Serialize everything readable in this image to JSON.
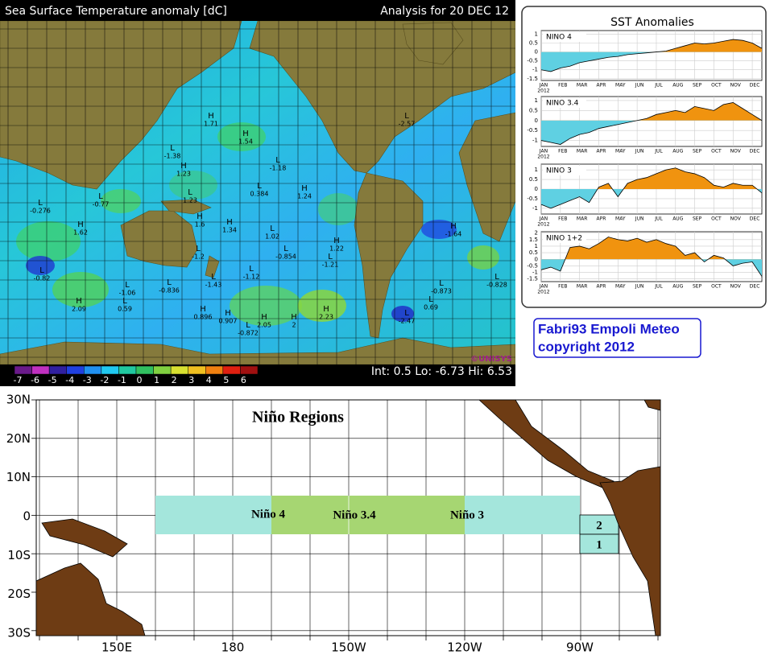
{
  "sst_map": {
    "title": "Sea Surface Temperature anomaly [dC]",
    "analysis": "Analysis for 20 DEC 12",
    "stats": "Int: 0.5  Lo: -6.73  Hi: 6.53",
    "brand": "©UNISYS",
    "colorbar_ticks": [
      -7,
      -6,
      -5,
      -4,
      -3,
      -2,
      -1,
      0,
      1,
      2,
      3,
      4,
      5,
      6
    ],
    "centers": [
      {
        "letter": "H",
        "value": "1.71"
      },
      {
        "letter": "L",
        "value": "-1.38"
      },
      {
        "letter": "H",
        "value": "1.23"
      },
      {
        "letter": "L",
        "value": "-0.77"
      },
      {
        "letter": "L",
        "value": "-0.276"
      },
      {
        "letter": "H",
        "value": "1.62"
      },
      {
        "letter": "L",
        "value": "1.23"
      },
      {
        "letter": "H",
        "value": "1.54"
      },
      {
        "letter": "L",
        "value": "-1.18"
      },
      {
        "letter": "L",
        "value": "0.384"
      },
      {
        "letter": "H",
        "value": "1.24"
      },
      {
        "letter": "H",
        "value": "1.6"
      },
      {
        "letter": "H",
        "value": "1.34"
      },
      {
        "letter": "L",
        "value": "1.02"
      },
      {
        "letter": "L",
        "value": "-1.2"
      },
      {
        "letter": "L",
        "value": "-0.854"
      },
      {
        "letter": "H",
        "value": "1.22"
      },
      {
        "letter": "L",
        "value": "-1.21"
      },
      {
        "letter": "L",
        "value": "-0.82"
      },
      {
        "letter": "L",
        "value": "-1.12"
      },
      {
        "letter": "L",
        "value": "-1.43"
      },
      {
        "letter": "L",
        "value": "-0.836"
      },
      {
        "letter": "L",
        "value": "-1.06"
      },
      {
        "letter": "L",
        "value": "-0.873"
      },
      {
        "letter": "L",
        "value": "-0.828"
      },
      {
        "letter": "H",
        "value": "-1.64"
      },
      {
        "letter": "H",
        "value": "2.09"
      },
      {
        "letter": "L",
        "value": "0.59"
      },
      {
        "letter": "L",
        "value": "-2.57"
      },
      {
        "letter": "H",
        "value": "0.896"
      },
      {
        "letter": "H",
        "value": "0.907"
      },
      {
        "letter": "H",
        "value": "2.05"
      },
      {
        "letter": "H",
        "value": "2"
      },
      {
        "letter": "H",
        "value": "2.23"
      },
      {
        "letter": "L",
        "value": "-0.872"
      },
      {
        "letter": "L",
        "value": "-2.47"
      },
      {
        "letter": "L",
        "value": "0.69"
      }
    ]
  },
  "sst_panel_title": "SST Anomalies",
  "chart_data": [
    {
      "type": "area",
      "title": "NINO 4",
      "year_label": "2012",
      "categories": [
        "JAN",
        null,
        "FEB",
        null,
        "MAR",
        null,
        "APR",
        null,
        "MAY",
        null,
        "JUN",
        null,
        "JUL",
        null,
        "AUG",
        null,
        "SEP",
        null,
        "OCT",
        null,
        "NOV",
        null,
        "DEC",
        null
      ],
      "values": [
        -1.0,
        -1.1,
        -0.9,
        -0.8,
        -0.6,
        -0.5,
        -0.4,
        -0.3,
        -0.25,
        -0.15,
        -0.1,
        -0.05,
        0,
        0.05,
        0.2,
        0.35,
        0.5,
        0.45,
        0.5,
        0.6,
        0.7,
        0.65,
        0.5,
        0.2
      ],
      "ylim": [
        -1.6,
        1.2
      ],
      "yticks": [
        1,
        0.5,
        0,
        -0.5,
        -1,
        -1.5
      ],
      "positive_color": "#f0930f",
      "negative_color": "#5fd0e2",
      "grid": true
    },
    {
      "type": "area",
      "title": "NINO 3.4",
      "year_label": "2012",
      "categories": [
        "JAN",
        null,
        "FEB",
        null,
        "MAR",
        null,
        "APR",
        null,
        "MAY",
        null,
        "JUN",
        null,
        "JUL",
        null,
        "AUG",
        null,
        "SEP",
        null,
        "OCT",
        null,
        "NOV",
        null,
        "DEC",
        null
      ],
      "values": [
        -1.0,
        -1.1,
        -1.2,
        -0.9,
        -0.7,
        -0.6,
        -0.4,
        -0.3,
        -0.2,
        -0.1,
        0,
        0.1,
        0.3,
        0.4,
        0.5,
        0.4,
        0.7,
        0.6,
        0.5,
        0.8,
        0.9,
        0.6,
        0.3,
        0.0
      ],
      "ylim": [
        -1.3,
        1.2
      ],
      "yticks": [
        1,
        0.5,
        0,
        -0.5,
        -1
      ],
      "positive_color": "#f0930f",
      "negative_color": "#5fd0e2",
      "grid": true
    },
    {
      "type": "area",
      "title": "NINO 3",
      "year_label": "2012",
      "categories": [
        "JAN",
        null,
        "FEB",
        null,
        "MAR",
        null,
        "APR",
        null,
        "MAY",
        null,
        "JUN",
        null,
        "JUL",
        null,
        "AUG",
        null,
        "SEP",
        null,
        "OCT",
        null,
        "NOV",
        null,
        "DEC",
        null
      ],
      "values": [
        -0.8,
        -1.0,
        -0.8,
        -0.6,
        -0.4,
        -0.7,
        0.1,
        0.3,
        -0.4,
        0.3,
        0.5,
        0.6,
        0.8,
        1.0,
        1.1,
        0.9,
        0.8,
        0.6,
        0.2,
        0.1,
        0.3,
        0.2,
        0.2,
        -0.2
      ],
      "ylim": [
        -1.3,
        1.3
      ],
      "yticks": [
        1,
        0.5,
        0,
        -0.5,
        -1
      ],
      "positive_color": "#f0930f",
      "negative_color": "#5fd0e2",
      "grid": true
    },
    {
      "type": "area",
      "title": "NINO 1+2",
      "year_label": "2012",
      "categories": [
        "JAN",
        null,
        "FEB",
        null,
        "MAR",
        null,
        "APR",
        null,
        "MAY",
        null,
        "JUN",
        null,
        "JUL",
        null,
        "AUG",
        null,
        "SEP",
        null,
        "OCT",
        null,
        "NOV",
        null,
        "DEC",
        null
      ],
      "values": [
        -0.8,
        -0.6,
        -0.9,
        0.9,
        1.0,
        0.8,
        1.2,
        1.7,
        1.5,
        1.4,
        1.6,
        1.3,
        1.5,
        1.2,
        1.0,
        0.3,
        0.5,
        -0.2,
        0.3,
        0.1,
        -0.5,
        -0.3,
        -0.2,
        -1.3
      ],
      "ylim": [
        -1.7,
        2.1
      ],
      "yticks": [
        2,
        1.5,
        1,
        0.5,
        0,
        -0.5,
        -1,
        -1.5
      ],
      "positive_color": "#f0930f",
      "negative_color": "#5fd0e2",
      "grid": true
    }
  ],
  "credit": {
    "line1": "Fabri93 Empoli Meteo",
    "line2": "copyright 2012"
  },
  "nino_map": {
    "title": "Niño Regions",
    "lat_labels": [
      "30N",
      "20N",
      "10N",
      "0",
      "10S",
      "20S",
      "30S"
    ],
    "lon_labels": [
      "150E",
      "180",
      "150W",
      "120W",
      "90W"
    ],
    "regions": [
      "Niño 4",
      "Niño 3.4",
      "Niño 3",
      "2",
      "1"
    ]
  }
}
